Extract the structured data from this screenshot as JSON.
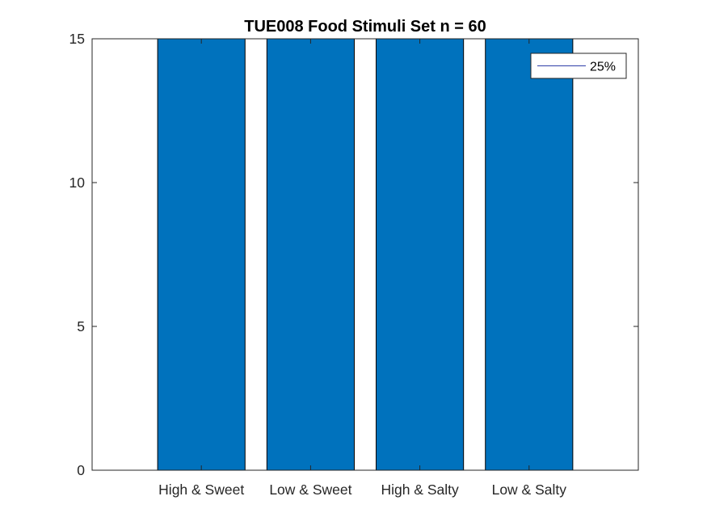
{
  "chart_data": {
    "type": "bar",
    "title": "TUE008 Food Stimuli Set n = 60",
    "xlabel": "",
    "ylabel": "",
    "categories": [
      "High & Sweet",
      "Low & Sweet",
      "High & Salty",
      "Low & Salty"
    ],
    "series": [
      {
        "values": [
          15,
          15,
          15,
          15
        ],
        "color": "#0072bd"
      }
    ],
    "ylim": [
      0,
      15
    ],
    "yticks": [
      0,
      5,
      10,
      15
    ],
    "grid": false,
    "legend": {
      "placement": "top-right",
      "entries": [
        {
          "label": "25%",
          "type": "line",
          "color": "#2f3fa8"
        }
      ]
    }
  }
}
